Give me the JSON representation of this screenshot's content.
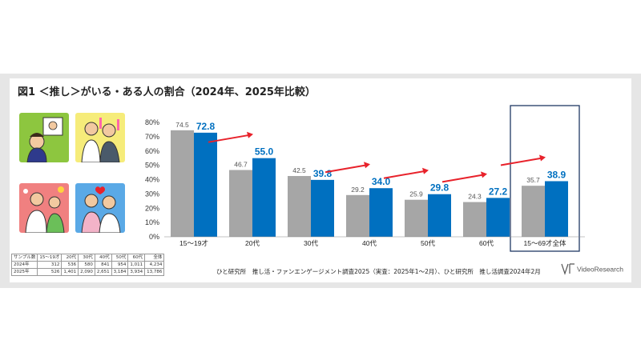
{
  "title": "図1 ＜推し＞がいる・ある人の割合（2024年、2025年比較）",
  "source": "ひと研究所　推し活・ファンエンゲージメント調査2025（実査：2025年1～2月）、ひと研究所　推し活調査2024年2月",
  "logo_text": "VideoResearch",
  "colors": {
    "y2024": "#a6a6a6",
    "y2025": "#0070c0",
    "arrow": "#e8222b",
    "highlight_box": "#1f3864"
  },
  "sample_table": {
    "header": [
      "サンプル数",
      "15～19才",
      "20代",
      "30代",
      "40代",
      "50代",
      "60代",
      "全体"
    ],
    "rows": [
      [
        "2024年",
        "312",
        "536",
        "580",
        "841",
        "954",
        "1,011",
        "4,234"
      ],
      [
        "2025年",
        "526",
        "1,401",
        "2,090",
        "2,651",
        "3,184",
        "3,934",
        "13,786"
      ]
    ]
  },
  "chart_data": {
    "type": "bar",
    "title": "",
    "xlabel": "",
    "ylabel": "",
    "ylim": [
      0,
      80
    ],
    "y_ticks": [
      "0%",
      "10%",
      "20%",
      "30%",
      "40%",
      "50%",
      "60%",
      "70%",
      "80%"
    ],
    "categories": [
      "15～19才",
      "20代",
      "30代",
      "40代",
      "50代",
      "60代",
      "15～69才全体"
    ],
    "series": [
      {
        "values": [
          74.5,
          46.7,
          42.5,
          29.2,
          25.9,
          24.3,
          35.7
        ]
      },
      {
        "values": [
          72.8,
          55.0,
          39.8,
          34.0,
          29.8,
          27.2,
          38.9
        ]
      }
    ],
    "value_labels_2024": [
      "74.5",
      "46.7",
      "42.5",
      "29.2",
      "25.9",
      "24.3",
      "35.7"
    ],
    "value_labels_2025": [
      "72.8",
      "55.0",
      "39.8",
      "34.0",
      "29.8",
      "27.2",
      "38.9"
    ],
    "increase_arrows": [
      "20代",
      "40代",
      "50代",
      "60代",
      "15～69才全体"
    ],
    "highlighted_category": "15～69才全体",
    "grid": false
  }
}
